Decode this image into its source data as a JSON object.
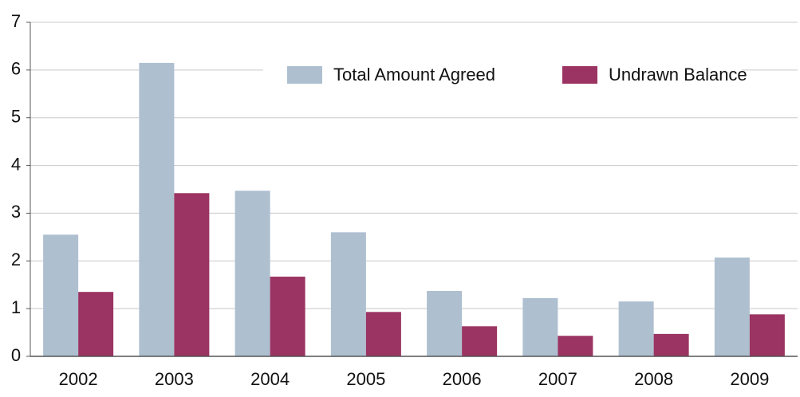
{
  "chart_data": {
    "type": "bar",
    "categories": [
      "2002",
      "2003",
      "2004",
      "2005",
      "2006",
      "2007",
      "2008",
      "2009"
    ],
    "series": [
      {
        "name": "Total Amount Agreed",
        "color": "#aebfd0",
        "values": [
          2.55,
          6.15,
          3.47,
          2.6,
          1.37,
          1.22,
          1.15,
          2.07
        ]
      },
      {
        "name": "Undrawn Balance",
        "color": "#9b3462",
        "values": [
          1.35,
          3.42,
          1.67,
          0.93,
          0.63,
          0.43,
          0.47,
          0.88
        ]
      }
    ],
    "ylim": [
      0,
      7
    ],
    "yticks": [
      0,
      1,
      2,
      3,
      4,
      5,
      6,
      7
    ],
    "grid": true,
    "legend": "top-right"
  }
}
